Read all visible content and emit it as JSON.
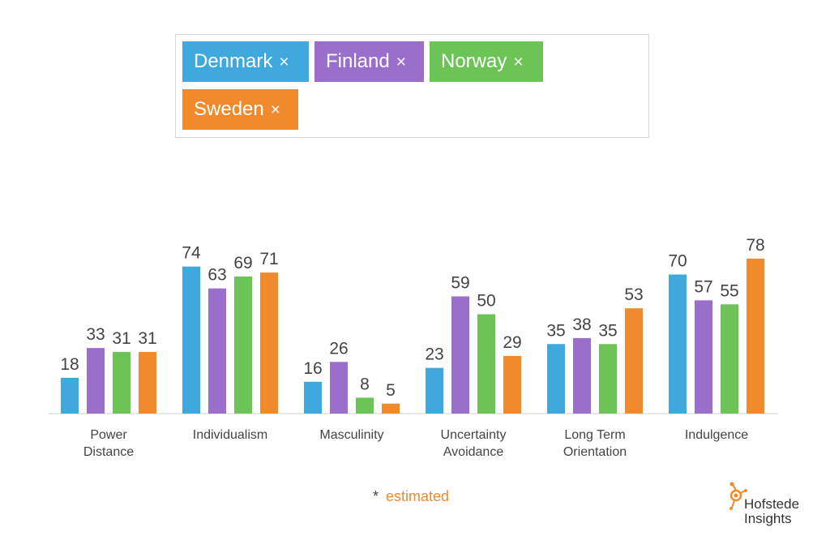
{
  "countries": [
    {
      "name": "Denmark",
      "color": "#3fa9dd"
    },
    {
      "name": "Finland",
      "color": "#9a6fcc"
    },
    {
      "name": "Norway",
      "color": "#6cc456"
    },
    {
      "name": "Sweden",
      "color": "#f08a2c"
    }
  ],
  "remove_glyph": "×",
  "chart_data": {
    "type": "bar",
    "categories": [
      [
        "Power",
        "Distance"
      ],
      [
        "Individualism"
      ],
      [
        "Masculinity"
      ],
      [
        "Uncertainty",
        "Avoidance"
      ],
      [
        "Long Term",
        "Orientation"
      ],
      [
        "Indulgence"
      ]
    ],
    "series": [
      {
        "name": "Denmark",
        "color": "#3fa9dd",
        "values": [
          18,
          74,
          16,
          23,
          35,
          70
        ]
      },
      {
        "name": "Finland",
        "color": "#9a6fcc",
        "values": [
          33,
          63,
          26,
          59,
          38,
          57
        ]
      },
      {
        "name": "Norway",
        "color": "#6cc456",
        "values": [
          31,
          69,
          8,
          50,
          35,
          55
        ]
      },
      {
        "name": "Sweden",
        "color": "#f08a2c",
        "values": [
          31,
          71,
          5,
          29,
          53,
          78
        ]
      }
    ],
    "ylim": [
      0,
      100
    ],
    "grid": false,
    "data_labels": true
  },
  "footnote": {
    "star": "*",
    "text": "estimated"
  },
  "logo": {
    "line1": "Hofstede",
    "line2": "Insights",
    "color": "#f08a2c"
  }
}
